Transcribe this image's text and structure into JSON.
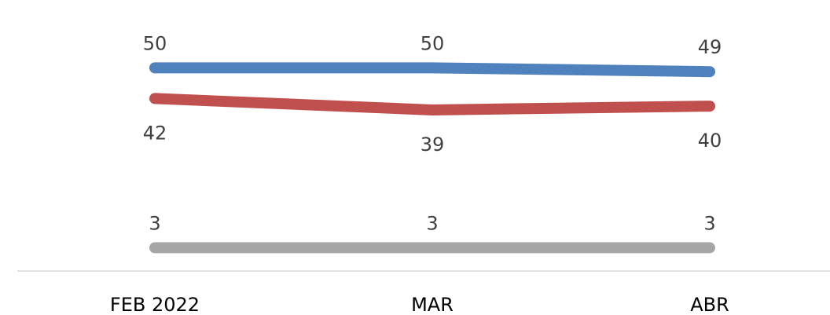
{
  "chart_data": {
    "type": "line",
    "categories": [
      "FEB 2022",
      "MAR",
      "ABR"
    ],
    "series": [
      {
        "values": [
          50,
          50,
          49
        ],
        "color": "#4F81BD",
        "label_position": "above"
      },
      {
        "values": [
          42,
          39,
          40
        ],
        "color": "#C0504D",
        "label_position": "below"
      },
      {
        "values": [
          3,
          3,
          3
        ],
        "color": "#A6A6A6",
        "label_position": "above"
      }
    ],
    "ylim": [
      0,
      55
    ],
    "grid": false,
    "legend": "none"
  }
}
